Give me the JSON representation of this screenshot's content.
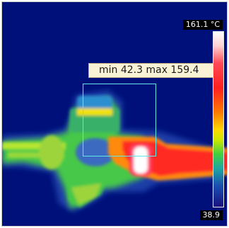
{
  "app": {
    "thermal_image": {
      "scale_max_label": "161.1 °C",
      "scale_min_label": "38.9",
      "measurement_label": "min 42.3 max 159.4",
      "scale": {
        "max": 161.1,
        "min": 38.9,
        "unit": "°C"
      },
      "roi_stats": {
        "min": 42.3,
        "max": 159.4
      }
    },
    "colors": {
      "background": "#00107a",
      "roi_outline": "#5fe6e6",
      "label_bg": "#fbf3d6"
    }
  }
}
